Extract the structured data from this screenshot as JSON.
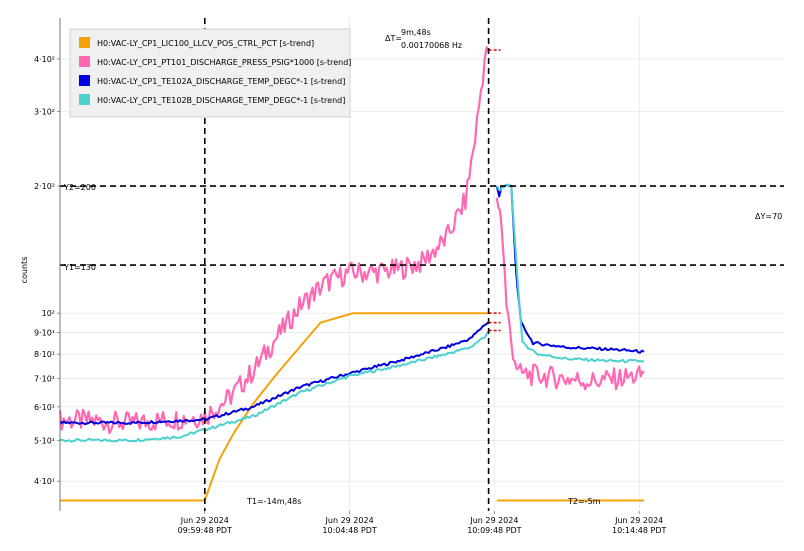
{
  "chart_data": {
    "type": "line",
    "ylabel": "counts",
    "yscale": "log",
    "ylim": [
      34,
      500
    ],
    "x_start_seconds": 0,
    "x_end_seconds": 1500,
    "xticks": [
      {
        "t": 300,
        "line1": "Jun 29 2024",
        "line2": "09:59:48 PDT"
      },
      {
        "t": 600,
        "line1": "Jun 29 2024",
        "line2": "10:04:48 PDT"
      },
      {
        "t": 900,
        "line1": "Jun 29 2024",
        "line2": "10:09:48 PDT"
      },
      {
        "t": 1200,
        "line1": "Jun 29 2024",
        "line2": "10:14:48 PDT"
      }
    ],
    "yticks": [
      {
        "v": 40,
        "label": "4·10¹"
      },
      {
        "v": 50,
        "label": "5·10¹"
      },
      {
        "v": 60,
        "label": "6·10¹"
      },
      {
        "v": 70,
        "label": "7·10¹"
      },
      {
        "v": 80,
        "label": "8·10¹"
      },
      {
        "v": 90,
        "label": "9·10¹"
      },
      {
        "v": 100,
        "label": "10²"
      },
      {
        "v": 200,
        "label": "2·10²"
      },
      {
        "v": 300,
        "label": "3·10²"
      },
      {
        "v": 400,
        "label": "4·10²"
      }
    ],
    "cursors": {
      "t1_label": "T1=-14m,48s",
      "t2_label": "T2=-5m",
      "dt_label": "ΔT=",
      "dt_value": "9m,48s",
      "dt_freq": "0.00170068 Hz",
      "y1_label": "Y1=130",
      "y2_label": "Y2=200",
      "dy_label": "ΔY=70",
      "t1": 300,
      "t2": 888,
      "y1": 130,
      "y2": 200
    },
    "legend_position": "top-left",
    "series": [
      {
        "name": "H0:VAC-LY_CP1_LIC100_LLCV_POS_CTRL_PCT [s-trend]",
        "color": "#f5a20a",
        "points": [
          [
            0,
            36
          ],
          [
            300,
            36
          ],
          [
            330,
            45
          ],
          [
            360,
            52
          ],
          [
            400,
            61
          ],
          [
            450,
            72
          ],
          [
            500,
            84
          ],
          [
            540,
            95
          ],
          [
            607,
            100
          ],
          [
            888,
            100
          ],
          [
            905,
            36
          ],
          [
            1210,
            36
          ]
        ]
      },
      {
        "name": "H0:VAC-LY_CP1_PT101_DISCHARGE_PRESS_PSIG*1000 [s-trend]",
        "color": "#ff69b4",
        "points": [
          [
            0,
            56
          ],
          [
            150,
            55
          ],
          [
            300,
            57
          ],
          [
            350,
            63
          ],
          [
            400,
            73
          ],
          [
            450,
            88
          ],
          [
            500,
            105
          ],
          [
            550,
            118
          ],
          [
            600,
            125
          ],
          [
            650,
            125
          ],
          [
            700,
            127
          ],
          [
            750,
            132
          ],
          [
            800,
            150
          ],
          [
            840,
            185
          ],
          [
            860,
            260
          ],
          [
            880,
            400
          ],
          [
            888,
            420
          ],
          [
            905,
            190
          ],
          [
            915,
            165
          ],
          [
            925,
            105
          ],
          [
            935,
            85
          ],
          [
            950,
            72
          ],
          [
            1000,
            71
          ],
          [
            1100,
            69
          ],
          [
            1200,
            71
          ],
          [
            1210,
            72
          ]
        ]
      },
      {
        "name": "H0:VAC-LY_CP1_TE102A_DISCHARGE_TEMP_DEGC*-1 [s-trend]",
        "color": "#0000e0",
        "points": [
          [
            0,
            55
          ],
          [
            150,
            55
          ],
          [
            300,
            56
          ],
          [
            400,
            60
          ],
          [
            500,
            67
          ],
          [
            600,
            72
          ],
          [
            700,
            77
          ],
          [
            800,
            83
          ],
          [
            850,
            87
          ],
          [
            880,
            94
          ],
          [
            888,
            95
          ],
          [
            905,
            200
          ],
          [
            910,
            190
          ],
          [
            915,
            200
          ],
          [
            935,
            200
          ],
          [
            945,
            125
          ],
          [
            955,
            95
          ],
          [
            980,
            85
          ],
          [
            1050,
            83
          ],
          [
            1150,
            82
          ],
          [
            1210,
            81
          ]
        ]
      },
      {
        "name": "H0:VAC-LY_CP1_TE102B_DISCHARGE_TEMP_DEGC*-1 [s-trend]",
        "color": "#4dd0cf",
        "points": [
          [
            0,
            50
          ],
          [
            150,
            50
          ],
          [
            250,
            51
          ],
          [
            300,
            53
          ],
          [
            400,
            57
          ],
          [
            500,
            65
          ],
          [
            600,
            71
          ],
          [
            700,
            75
          ],
          [
            800,
            80
          ],
          [
            850,
            83
          ],
          [
            880,
            88
          ],
          [
            888,
            91
          ],
          [
            905,
            200
          ],
          [
            910,
            195
          ],
          [
            920,
            200
          ],
          [
            935,
            200
          ],
          [
            948,
            120
          ],
          [
            958,
            85
          ],
          [
            990,
            80
          ],
          [
            1050,
            78
          ],
          [
            1150,
            77
          ],
          [
            1210,
            77
          ]
        ]
      }
    ]
  }
}
